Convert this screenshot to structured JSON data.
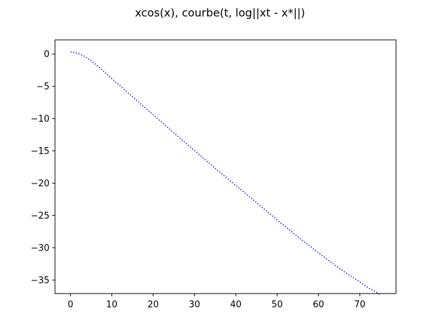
{
  "chart_data": {
    "type": "line",
    "title": "xcos(x), courbe(t, log||xt - x*||)",
    "xlabel": "",
    "ylabel": "",
    "xlim": [
      -3.75,
      78.75
    ],
    "ylim": [
      -37.1,
      2.2
    ],
    "x_ticks": [
      0,
      10,
      20,
      30,
      40,
      50,
      60,
      70
    ],
    "y_ticks": [
      0,
      -5,
      -10,
      -15,
      -20,
      -25,
      -30,
      -35
    ],
    "grid": false,
    "line_style": "dotted",
    "series": [
      {
        "color": "#0000ff",
        "x": [
          0,
          1,
          2,
          3,
          4,
          5,
          6,
          7,
          8,
          10,
          15,
          20,
          25,
          30,
          35,
          40,
          45,
          50,
          55,
          60,
          65,
          70,
          72,
          74,
          75
        ],
        "y": [
          0.35,
          0.25,
          0.05,
          -0.2,
          -0.6,
          -1.0,
          -1.55,
          -2.1,
          -2.65,
          -3.8,
          -6.6,
          -9.4,
          -12.2,
          -14.95,
          -17.7,
          -20.35,
          -23.0,
          -25.7,
          -28.3,
          -30.8,
          -33.2,
          -35.3,
          -36.2,
          -36.9,
          -37.3
        ]
      }
    ]
  }
}
